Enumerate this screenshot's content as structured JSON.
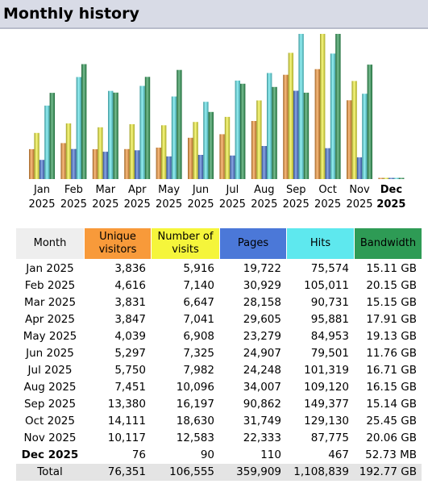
{
  "page": {
    "title": "Monthly history"
  },
  "colors": {
    "unique_visitors": "#f89a3a",
    "visits": "#f5f53b",
    "pages": "#4b78d8",
    "hits": "#5ee8ee",
    "bandwidth": "#2e9b55",
    "header_bg": "#d8dbe6",
    "total_bg": "#e4e4e4"
  },
  "chart_data": {
    "type": "bar",
    "categories": [
      {
        "month": "Jan",
        "year": "2025",
        "current": false
      },
      {
        "month": "Feb",
        "year": "2025",
        "current": false
      },
      {
        "month": "Mar",
        "year": "2025",
        "current": false
      },
      {
        "month": "Apr",
        "year": "2025",
        "current": false
      },
      {
        "month": "May",
        "year": "2025",
        "current": false
      },
      {
        "month": "Jun",
        "year": "2025",
        "current": false
      },
      {
        "month": "Jul",
        "year": "2025",
        "current": false
      },
      {
        "month": "Aug",
        "year": "2025",
        "current": false
      },
      {
        "month": "Sep",
        "year": "2025",
        "current": false
      },
      {
        "month": "Oct",
        "year": "2025",
        "current": false
      },
      {
        "month": "Nov",
        "year": "2025",
        "current": false
      },
      {
        "month": "Dec",
        "year": "2025",
        "current": true
      }
    ],
    "series": [
      {
        "key": "unique_visitors",
        "values": [
          3836,
          4616,
          3831,
          3847,
          4039,
          5297,
          5750,
          7451,
          13380,
          14111,
          10117,
          76
        ]
      },
      {
        "key": "visits",
        "values": [
          5916,
          7140,
          6647,
          7041,
          6908,
          7325,
          7982,
          10096,
          16197,
          18630,
          12583,
          90
        ]
      },
      {
        "key": "pages",
        "values": [
          19722,
          30929,
          28158,
          29605,
          23279,
          24907,
          24248,
          34007,
          90862,
          31749,
          22333,
          110
        ]
      },
      {
        "key": "hits",
        "values": [
          75574,
          105011,
          90731,
          95881,
          84953,
          79501,
          101319,
          109120,
          149377,
          129130,
          87775,
          467
        ]
      },
      {
        "key": "bandwidth_gb",
        "values": [
          15.11,
          20.15,
          15.15,
          17.91,
          19.13,
          11.76,
          16.71,
          16.15,
          15.14,
          25.45,
          20.06,
          0.0515
        ]
      }
    ],
    "scale_groups": [
      {
        "series": [
          "unique_visitors",
          "visits"
        ],
        "max": 18630
      },
      {
        "series": [
          "pages",
          "hits"
        ],
        "max": 149377
      },
      {
        "series": [
          "bandwidth_gb"
        ],
        "max": 25.45
      }
    ]
  },
  "table": {
    "headers": {
      "month": "Month",
      "unique_visitors": [
        "Unique",
        "visitors"
      ],
      "visits": [
        "Number of",
        "visits"
      ],
      "pages": "Pages",
      "hits": "Hits",
      "bandwidth": "Bandwidth"
    },
    "rows": [
      {
        "month": "Jan 2025",
        "unique_visitors": "3,836",
        "visits": "5,916",
        "pages": "19,722",
        "hits": "75,574",
        "bandwidth": "15.11 GB"
      },
      {
        "month": "Feb 2025",
        "unique_visitors": "4,616",
        "visits": "7,140",
        "pages": "30,929",
        "hits": "105,011",
        "bandwidth": "20.15 GB"
      },
      {
        "month": "Mar 2025",
        "unique_visitors": "3,831",
        "visits": "6,647",
        "pages": "28,158",
        "hits": "90,731",
        "bandwidth": "15.15 GB"
      },
      {
        "month": "Apr 2025",
        "unique_visitors": "3,847",
        "visits": "7,041",
        "pages": "29,605",
        "hits": "95,881",
        "bandwidth": "17.91 GB"
      },
      {
        "month": "May 2025",
        "unique_visitors": "4,039",
        "visits": "6,908",
        "pages": "23,279",
        "hits": "84,953",
        "bandwidth": "19.13 GB"
      },
      {
        "month": "Jun 2025",
        "unique_visitors": "5,297",
        "visits": "7,325",
        "pages": "24,907",
        "hits": "79,501",
        "bandwidth": "11.76 GB"
      },
      {
        "month": "Jul 2025",
        "unique_visitors": "5,750",
        "visits": "7,982",
        "pages": "24,248",
        "hits": "101,319",
        "bandwidth": "16.71 GB"
      },
      {
        "month": "Aug 2025",
        "unique_visitors": "7,451",
        "visits": "10,096",
        "pages": "34,007",
        "hits": "109,120",
        "bandwidth": "16.15 GB"
      },
      {
        "month": "Sep 2025",
        "unique_visitors": "13,380",
        "visits": "16,197",
        "pages": "90,862",
        "hits": "149,377",
        "bandwidth": "15.14 GB"
      },
      {
        "month": "Oct 2025",
        "unique_visitors": "14,111",
        "visits": "18,630",
        "pages": "31,749",
        "hits": "129,130",
        "bandwidth": "25.45 GB"
      },
      {
        "month": "Nov 2025",
        "unique_visitors": "10,117",
        "visits": "12,583",
        "pages": "22,333",
        "hits": "87,775",
        "bandwidth": "20.06 GB"
      },
      {
        "month": "Dec 2025",
        "unique_visitors": "76",
        "visits": "90",
        "pages": "110",
        "hits": "467",
        "bandwidth": "52.73 MB",
        "current": true
      }
    ],
    "total": {
      "month": "Total",
      "unique_visitors": "76,351",
      "visits": "106,555",
      "pages": "359,909",
      "hits": "1,108,839",
      "bandwidth": "192.77 GB"
    }
  }
}
